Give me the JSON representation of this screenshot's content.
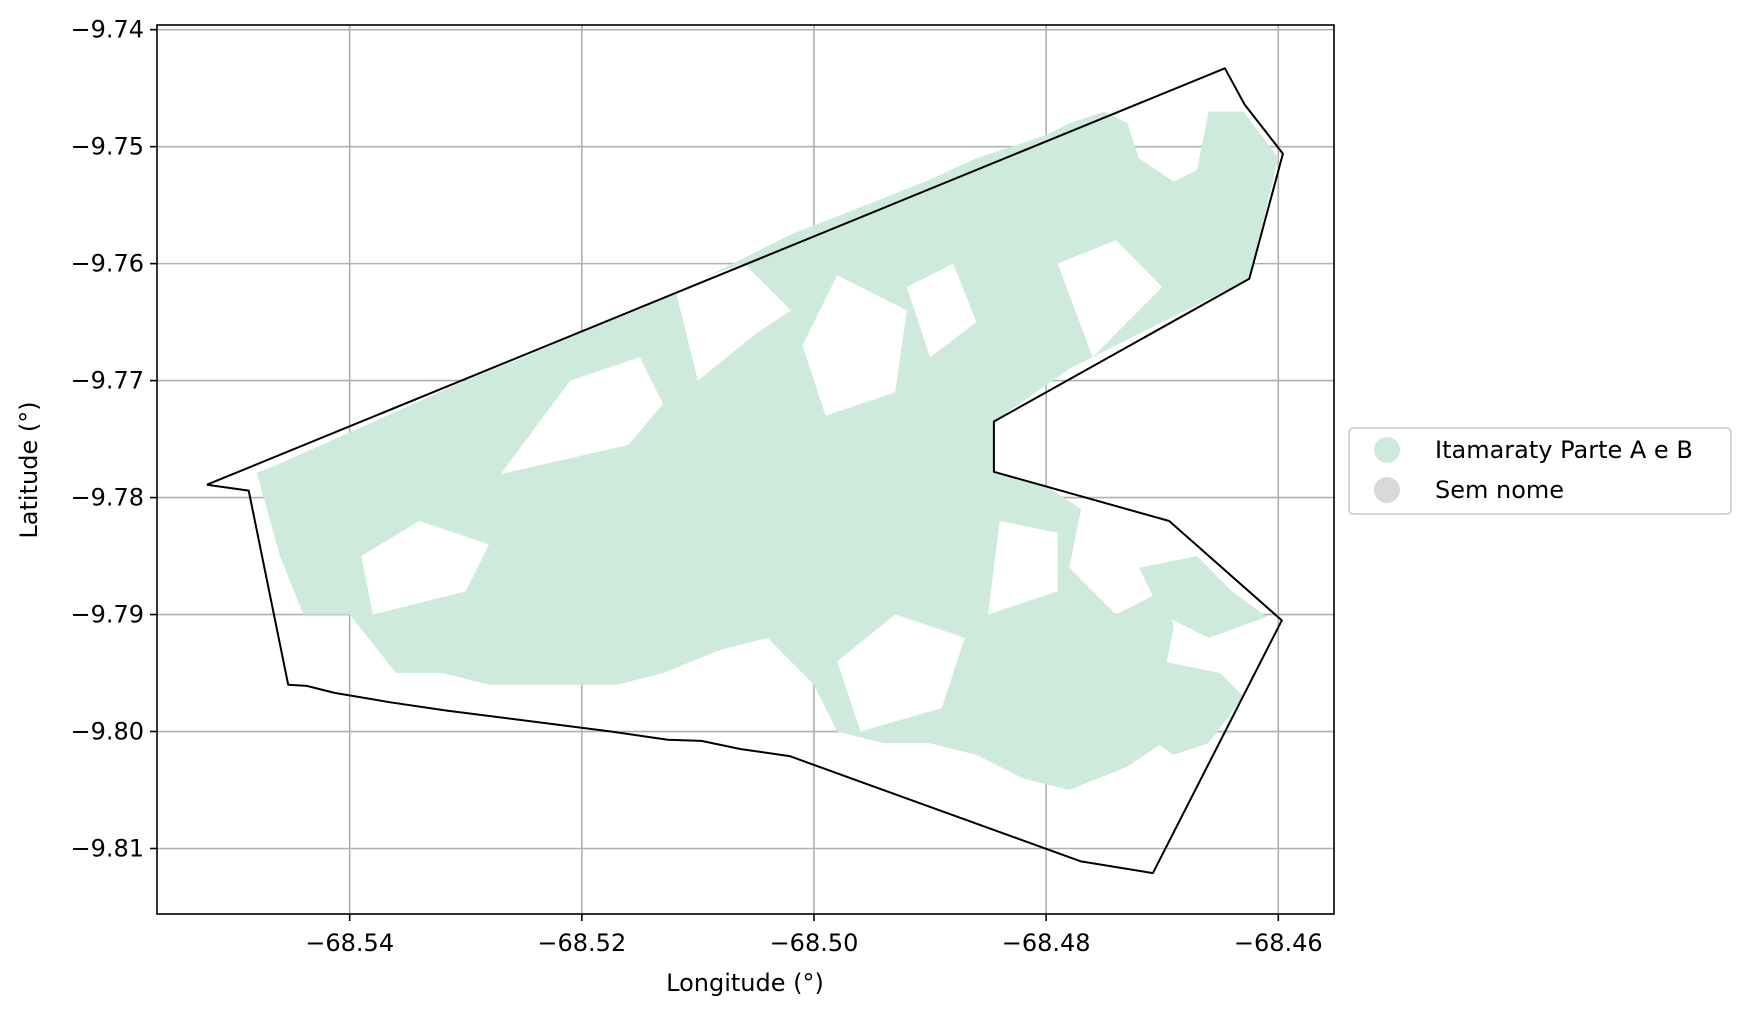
{
  "chart_data": {
    "type": "map",
    "xlabel": "Longitude (°)",
    "ylabel": "Latitude (°)",
    "xlim": [
      -68.5566,
      -68.4552
    ],
    "ylim": [
      -9.8156,
      -9.7396
    ],
    "x_ticks": [
      -68.54,
      -68.52,
      -68.5,
      -68.48,
      -68.46
    ],
    "x_tick_labels": [
      "−68.54",
      "−68.52",
      "−68.50",
      "−68.48",
      "−68.46"
    ],
    "y_ticks": [
      -9.74,
      -9.75,
      -9.76,
      -9.77,
      -9.78,
      -9.79,
      -9.8,
      -9.81
    ],
    "y_tick_labels": [
      "−9.74",
      "−9.75",
      "−9.76",
      "−9.77",
      "−9.78",
      "−9.79",
      "−9.80",
      "−9.81"
    ],
    "grid": true,
    "legend_position": "right",
    "legend": [
      {
        "label": "Itamaraty Parte A e B",
        "color": "#cdeadd"
      },
      {
        "label": "Sem nome",
        "color": "#d9d9d9"
      }
    ],
    "boundary": {
      "color": "#000000",
      "points": [
        [
          -68.5523,
          -9.7789
        ],
        [
          -68.5487,
          -9.7794
        ],
        [
          -68.5453,
          -9.796
        ],
        [
          -68.5437,
          -9.7961
        ],
        [
          -68.5413,
          -9.7967
        ],
        [
          -68.5365,
          -9.7975
        ],
        [
          -68.5317,
          -9.7982
        ],
        [
          -68.5175,
          -9.8
        ],
        [
          -68.5126,
          -9.8007
        ],
        [
          -68.5097,
          -9.8008
        ],
        [
          -68.5063,
          -9.8015
        ],
        [
          -68.5021,
          -9.8021
        ],
        [
          -68.477,
          -9.8111
        ],
        [
          -68.4708,
          -9.8121
        ],
        [
          -68.4597,
          -9.7905
        ],
        [
          -68.4694,
          -9.782
        ],
        [
          -68.4845,
          -9.7778
        ],
        [
          -68.4845,
          -9.7735
        ],
        [
          -68.4625,
          -9.7613
        ],
        [
          -68.4596,
          -9.7506
        ],
        [
          -68.4629,
          -9.7464
        ],
        [
          -68.4646,
          -9.7433
        ],
        [
          -68.5523,
          -9.7789
        ]
      ]
    },
    "vegetation_areas": [
      {
        "name": "Itamaraty Parte A e B",
        "color": "#cdeadd",
        "points": [
          [
            -68.548,
            -9.7779
          ],
          [
            -68.5465,
            -9.7773
          ],
          [
            -68.544,
            -9.7762
          ],
          [
            -68.53,
            -9.77
          ],
          [
            -68.525,
            -9.768
          ],
          [
            -68.518,
            -9.765
          ],
          [
            -68.513,
            -9.763
          ],
          [
            -68.507,
            -9.76
          ],
          [
            -68.502,
            -9.7575
          ],
          [
            -68.495,
            -9.7548
          ],
          [
            -68.49,
            -9.7528
          ],
          [
            -68.486,
            -9.751
          ],
          [
            -68.48,
            -9.749
          ],
          [
            -68.478,
            -9.748
          ],
          [
            -68.475,
            -9.747
          ],
          [
            -68.473,
            -9.748
          ],
          [
            -68.472,
            -9.751
          ],
          [
            -68.469,
            -9.753
          ],
          [
            -68.467,
            -9.752
          ],
          [
            -68.466,
            -9.747
          ],
          [
            -68.463,
            -9.747
          ],
          [
            -68.46,
            -9.751
          ],
          [
            -68.4625,
            -9.7613
          ],
          [
            -68.472,
            -9.766
          ],
          [
            -68.478,
            -9.769
          ],
          [
            -68.4845,
            -9.7735
          ],
          [
            -68.4845,
            -9.7778
          ],
          [
            -68.48,
            -9.779
          ],
          [
            -68.477,
            -9.781
          ],
          [
            -68.478,
            -9.786
          ],
          [
            -68.474,
            -9.79
          ],
          [
            -68.47,
            -9.788
          ],
          [
            -68.469,
            -9.791
          ],
          [
            -68.47,
            -9.796
          ],
          [
            -68.47,
            -9.801
          ],
          [
            -68.473,
            -9.803
          ],
          [
            -68.478,
            -9.805
          ],
          [
            -68.482,
            -9.804
          ],
          [
            -68.486,
            -9.802
          ],
          [
            -68.49,
            -9.801
          ],
          [
            -68.494,
            -9.801
          ],
          [
            -68.498,
            -9.8
          ],
          [
            -68.5,
            -9.796
          ],
          [
            -68.504,
            -9.792
          ],
          [
            -68.508,
            -9.793
          ],
          [
            -68.513,
            -9.795
          ],
          [
            -68.517,
            -9.796
          ],
          [
            -68.522,
            -9.796
          ],
          [
            -68.528,
            -9.796
          ],
          [
            -68.532,
            -9.795
          ],
          [
            -68.536,
            -9.795
          ],
          [
            -68.54,
            -9.79
          ],
          [
            -68.544,
            -9.79
          ],
          [
            -68.546,
            -9.785
          ],
          [
            -68.548,
            -9.7779
          ]
        ]
      },
      {
        "name": "Itamaraty Parte A e B",
        "color": "#cdeadd",
        "points": [
          [
            -68.472,
            -9.786
          ],
          [
            -68.467,
            -9.785
          ],
          [
            -68.464,
            -9.788
          ],
          [
            -68.461,
            -9.7902
          ],
          [
            -68.466,
            -9.792
          ],
          [
            -68.47,
            -9.79
          ],
          [
            -68.472,
            -9.786
          ]
        ]
      },
      {
        "name": "Itamaraty Parte A e B",
        "color": "#cdeadd",
        "points": [
          [
            -68.47,
            -9.794
          ],
          [
            -68.465,
            -9.795
          ],
          [
            -68.463,
            -9.797
          ],
          [
            -68.466,
            -9.801
          ],
          [
            -68.469,
            -9.802
          ],
          [
            -68.472,
            -9.8
          ],
          [
            -68.47,
            -9.794
          ]
        ]
      }
    ],
    "clearings": [
      [
        [
          -68.527,
          -9.778
        ],
        [
          -68.516,
          -9.7755
        ],
        [
          -68.513,
          -9.772
        ],
        [
          -68.515,
          -9.768
        ],
        [
          -68.521,
          -9.77
        ],
        [
          -68.527,
          -9.778
        ]
      ],
      [
        [
          -68.51,
          -9.77
        ],
        [
          -68.505,
          -9.766
        ],
        [
          -68.502,
          -9.764
        ],
        [
          -68.506,
          -9.76
        ],
        [
          -68.512,
          -9.762
        ],
        [
          -68.51,
          -9.77
        ]
      ],
      [
        [
          -68.499,
          -9.773
        ],
        [
          -68.493,
          -9.771
        ],
        [
          -68.492,
          -9.764
        ],
        [
          -68.498,
          -9.761
        ],
        [
          -68.501,
          -9.767
        ],
        [
          -68.499,
          -9.773
        ]
      ],
      [
        [
          -68.49,
          -9.768
        ],
        [
          -68.486,
          -9.765
        ],
        [
          -68.488,
          -9.76
        ],
        [
          -68.492,
          -9.762
        ],
        [
          -68.49,
          -9.768
        ]
      ],
      [
        [
          -68.476,
          -9.768
        ],
        [
          -68.47,
          -9.762
        ],
        [
          -68.474,
          -9.758
        ],
        [
          -68.479,
          -9.76
        ],
        [
          -68.476,
          -9.768
        ]
      ],
      [
        [
          -68.538,
          -9.79
        ],
        [
          -68.53,
          -9.788
        ],
        [
          -68.528,
          -9.784
        ],
        [
          -68.534,
          -9.782
        ],
        [
          -68.539,
          -9.785
        ],
        [
          -68.538,
          -9.79
        ]
      ],
      [
        [
          -68.496,
          -9.8
        ],
        [
          -68.489,
          -9.798
        ],
        [
          -68.487,
          -9.792
        ],
        [
          -68.493,
          -9.79
        ],
        [
          -68.498,
          -9.794
        ],
        [
          -68.496,
          -9.8
        ]
      ],
      [
        [
          -68.485,
          -9.79
        ],
        [
          -68.479,
          -9.788
        ],
        [
          -68.479,
          -9.783
        ],
        [
          -68.484,
          -9.782
        ],
        [
          -68.485,
          -9.79
        ]
      ]
    ]
  }
}
